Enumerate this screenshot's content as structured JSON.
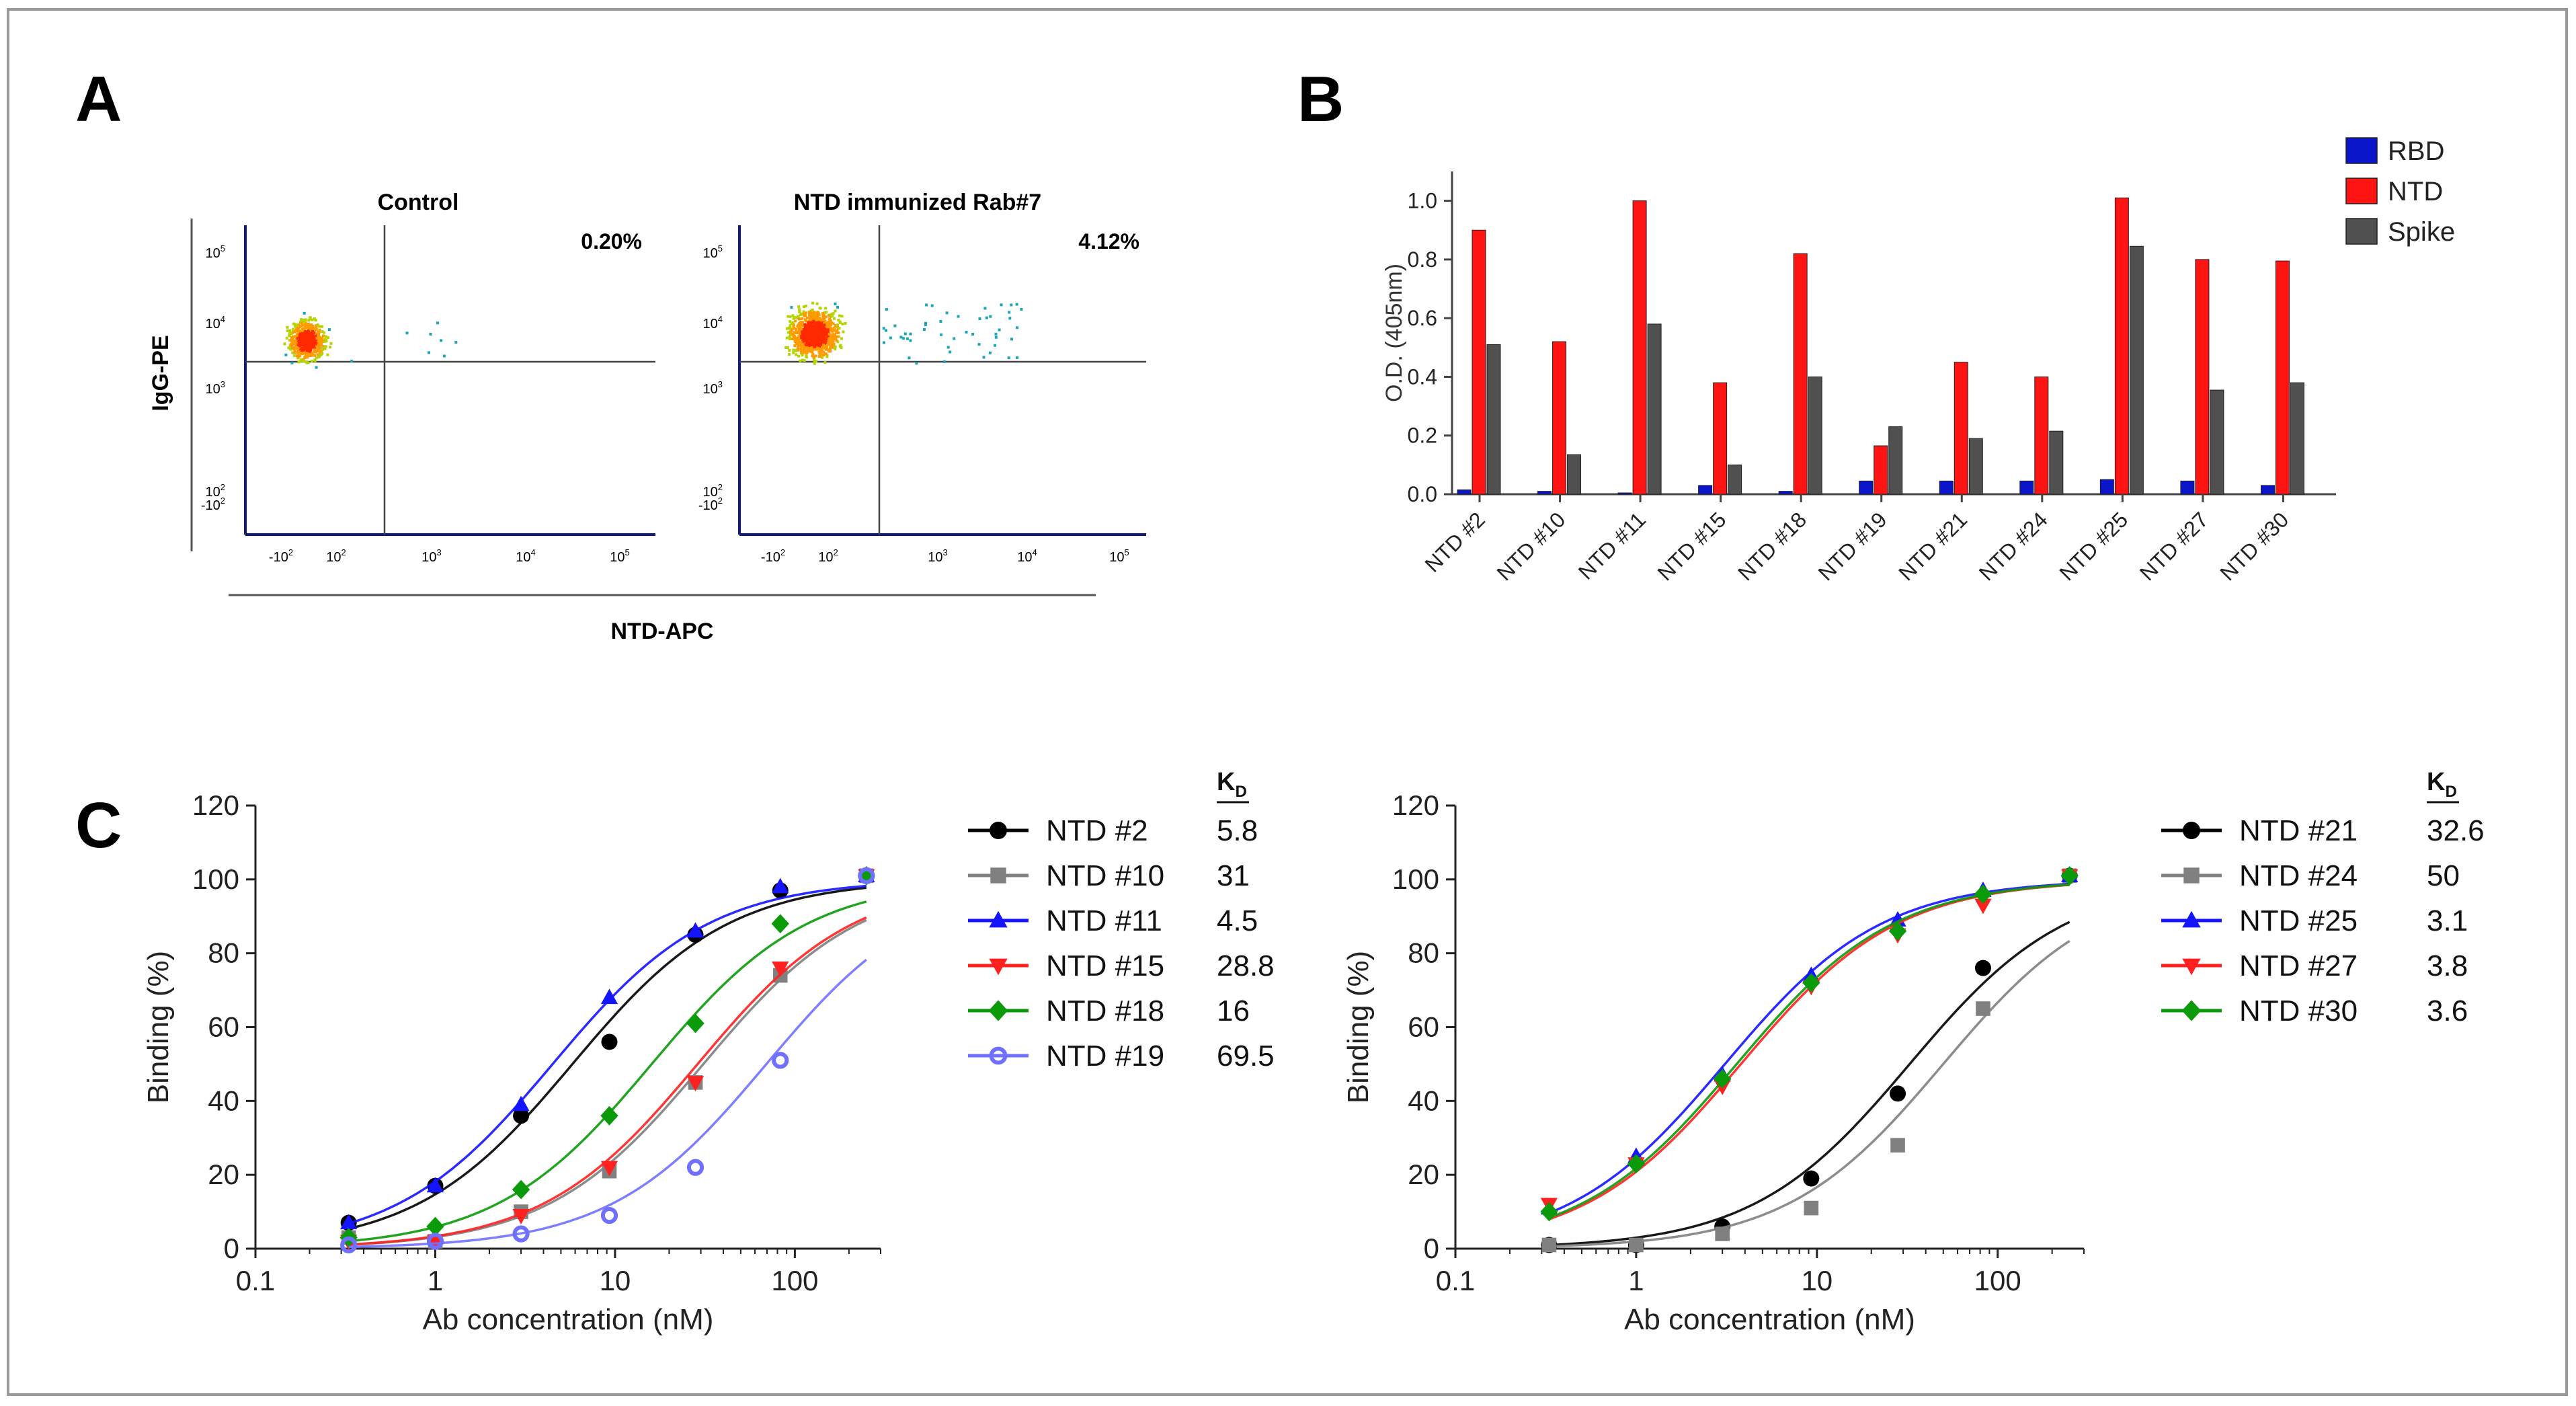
{
  "panel_labels": {
    "a": "A",
    "b": "B",
    "c": "C"
  },
  "colors": {
    "rbd": "#0a14c8",
    "ntd": "#ff1414",
    "spike": "#505050",
    "s2": "#000000",
    "s10": "#808080",
    "s11": "#1414ff",
    "s15": "#ff2020",
    "s18": "#0a9a0a",
    "s19": "#7070ff"
  },
  "chart_data": [
    {
      "panel": "A",
      "type": "scatter",
      "subtype": "flow-cytometry",
      "ylabel": "IgG-PE",
      "xlabel": "NTD-APC",
      "plots": [
        {
          "title": "Control",
          "percent": "0.20%"
        },
        {
          "title": "NTD immunized Rab#7",
          "percent": "4.12%"
        }
      ],
      "x_ticks": [
        {
          "label": "-10",
          "exp": "2"
        },
        {
          "label": "10",
          "exp": "2"
        },
        {
          "label": "10",
          "exp": "3"
        },
        {
          "label": "10",
          "exp": "4"
        },
        {
          "label": "10",
          "exp": "5"
        }
      ],
      "y_ticks": [
        {
          "label": "10",
          "exp": "5"
        },
        {
          "label": "10",
          "exp": "4"
        },
        {
          "label": "10",
          "exp": "3"
        },
        {
          "label": "10",
          "exp": "2"
        },
        {
          "label": "-10",
          "exp": "2"
        }
      ]
    },
    {
      "panel": "B",
      "type": "bar",
      "ylabel": "O.D. (405nm)",
      "ylim": [
        0,
        1.1
      ],
      "yticks": [
        "0.0",
        "0.2",
        "0.4",
        "0.6",
        "0.8",
        "1.0"
      ],
      "categories": [
        "NTD #2",
        "NTD #10",
        "NTD #11",
        "NTD #15",
        "NTD #18",
        "NTD #19",
        "NTD #21",
        "NTD #24",
        "NTD #25",
        "NTD #27",
        "NTD #30"
      ],
      "series": [
        {
          "name": "RBD",
          "values": [
            0.015,
            0.01,
            0.0,
            0.03,
            0.01,
            0.045,
            0.045,
            0.045,
            0.05,
            0.045,
            0.03
          ]
        },
        {
          "name": "NTD",
          "values": [
            0.9,
            0.52,
            1.0,
            0.38,
            0.82,
            0.165,
            0.45,
            0.4,
            1.01,
            0.8,
            0.795
          ]
        },
        {
          "name": "Spike",
          "values": [
            0.51,
            0.135,
            0.58,
            0.1,
            0.4,
            0.23,
            0.19,
            0.215,
            0.845,
            0.355,
            0.38
          ]
        }
      ]
    },
    {
      "panel": "C-left",
      "type": "line",
      "scale": "log-x",
      "xlabel": "Ab concentration (nM)",
      "ylabel": "Binding (%)",
      "xlim": [
        0.1,
        300
      ],
      "ylim": [
        0,
        120
      ],
      "xticks": [
        "0.1",
        "1",
        "10",
        "100"
      ],
      "yticks": [
        "0",
        "20",
        "40",
        "60",
        "80",
        "100",
        "120"
      ],
      "legend_header": {
        "main": "K",
        "sub": "D"
      },
      "x": [
        0.33,
        1,
        3,
        9.3,
        28,
        83,
        250
      ],
      "series": [
        {
          "name": "NTD #2",
          "kd": "5.8",
          "marker": "circle",
          "color": "#000000",
          "fit_kd": 5.8,
          "values": [
            7,
            17,
            36,
            56,
            85,
            97,
            101
          ]
        },
        {
          "name": "NTD #10",
          "kd": "31",
          "marker": "square",
          "color": "#808080",
          "fit_kd": 31,
          "values": [
            3,
            2,
            10,
            21,
            45,
            74,
            101
          ]
        },
        {
          "name": "NTD #11",
          "kd": "4.5",
          "marker": "triangle-up",
          "color": "#1414ff",
          "fit_kd": 4.5,
          "values": [
            7,
            17,
            39,
            68,
            86,
            98,
            101
          ]
        },
        {
          "name": "NTD #15",
          "kd": "28.8",
          "marker": "triangle-down",
          "color": "#ff2020",
          "fit_kd": 28.8,
          "values": [
            2,
            2,
            9,
            22,
            45,
            76,
            101
          ]
        },
        {
          "name": "NTD #18",
          "kd": "16",
          "marker": "diamond",
          "color": "#0a9a0a",
          "fit_kd": 16,
          "values": [
            3,
            6,
            16,
            36,
            61,
            88,
            101
          ]
        },
        {
          "name": "NTD #19",
          "kd": "69.5",
          "marker": "open-circle",
          "color": "#7070ff",
          "fit_kd": 69.5,
          "values": [
            1,
            2,
            4,
            9,
            22,
            51,
            101
          ]
        }
      ]
    },
    {
      "panel": "C-right",
      "type": "line",
      "scale": "log-x",
      "xlabel": "Ab concentration (nM)",
      "ylabel": "Binding (%)",
      "xlim": [
        0.1,
        300
      ],
      "ylim": [
        0,
        120
      ],
      "xticks": [
        "0.1",
        "1",
        "10",
        "100"
      ],
      "yticks": [
        "0",
        "20",
        "40",
        "60",
        "80",
        "100",
        "120"
      ],
      "legend_header": {
        "main": "K",
        "sub": "D"
      },
      "x": [
        0.33,
        1,
        3,
        9.3,
        28,
        83,
        250
      ],
      "series": [
        {
          "name": "NTD #21",
          "kd": "32.6",
          "marker": "circle",
          "color": "#000000",
          "fit_kd": 32.6,
          "values": [
            1,
            1,
            6,
            19,
            42,
            76,
            101
          ]
        },
        {
          "name": "NTD #24",
          "kd": "50",
          "marker": "square",
          "color": "#808080",
          "fit_kd": 50,
          "values": [
            1,
            1,
            4,
            11,
            28,
            65,
            101
          ]
        },
        {
          "name": "NTD #25",
          "kd": "3.1",
          "marker": "triangle-up",
          "color": "#1414ff",
          "fit_kd": 3.1,
          "values": [
            11,
            25,
            47,
            74,
            89,
            97,
            101
          ]
        },
        {
          "name": "NTD #27",
          "kd": "3.8",
          "marker": "triangle-down",
          "color": "#ff2020",
          "fit_kd": 3.8,
          "values": [
            12,
            23,
            44,
            71,
            85,
            93,
            101
          ]
        },
        {
          "name": "NTD #30",
          "kd": "3.6",
          "marker": "diamond",
          "color": "#0a9a0a",
          "fit_kd": 3.6,
          "values": [
            10,
            23,
            46,
            72,
            86,
            96,
            101
          ]
        }
      ]
    }
  ]
}
